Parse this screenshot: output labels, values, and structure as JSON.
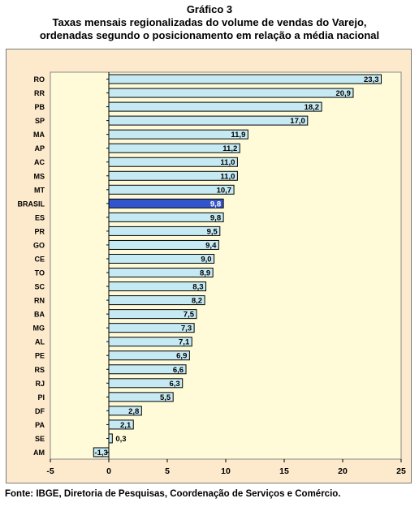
{
  "header": {
    "line1": "Gráfico 3",
    "line2": "Taxas mensais regionalizadas  do volume de vendas do Varejo,",
    "line3": "ordenadas segundo o posicionamento em relação a média nacional"
  },
  "source": "Fonte: IBGE, Diretoria de Pesquisas, Coordenação de Serviços e Comércio.",
  "colors": {
    "bar": "#c6eaf3",
    "highlight_bar": "#3355cc",
    "plot_bg": "#fffbd9",
    "frame_bg": "#fde9cb"
  },
  "chart_data": {
    "type": "bar",
    "orientation": "horizontal",
    "categories": [
      "RO",
      "RR",
      "PB",
      "SP",
      "MA",
      "AP",
      "AC",
      "MS",
      "MT",
      "BRASIL",
      "ES",
      "PR",
      "GO",
      "CE",
      "TO",
      "SC",
      "RN",
      "BA",
      "MG",
      "AL",
      "PE",
      "RS",
      "RJ",
      "PI",
      "DF",
      "PA",
      "SE",
      "AM"
    ],
    "values": [
      23.3,
      20.9,
      18.2,
      17.0,
      11.9,
      11.2,
      11.0,
      11.0,
      10.7,
      9.8,
      9.8,
      9.5,
      9.4,
      9.0,
      8.9,
      8.3,
      8.2,
      7.5,
      7.3,
      7.1,
      6.9,
      6.6,
      6.3,
      5.5,
      2.8,
      2.1,
      0.3,
      -1.3
    ],
    "value_labels": [
      "23,3",
      "20,9",
      "18,2",
      "17,0",
      "11,9",
      "11,2",
      "11,0",
      "11,0",
      "10,7",
      "9,8",
      "9,8",
      "9,5",
      "9,4",
      "9,0",
      "8,9",
      "8,3",
      "8,2",
      "7,5",
      "7,3",
      "7,1",
      "6,9",
      "6,6",
      "6,3",
      "5,5",
      "2,8",
      "2,1",
      "0,3",
      "-1,3"
    ],
    "highlight": "BRASIL",
    "xlim": [
      -5,
      25
    ],
    "xticks": [
      -5,
      0,
      5,
      10,
      15,
      20,
      25
    ],
    "xtick_labels": [
      "-5",
      "0",
      "5",
      "10",
      "15",
      "20",
      "25"
    ],
    "grid": false,
    "legend": "none"
  }
}
